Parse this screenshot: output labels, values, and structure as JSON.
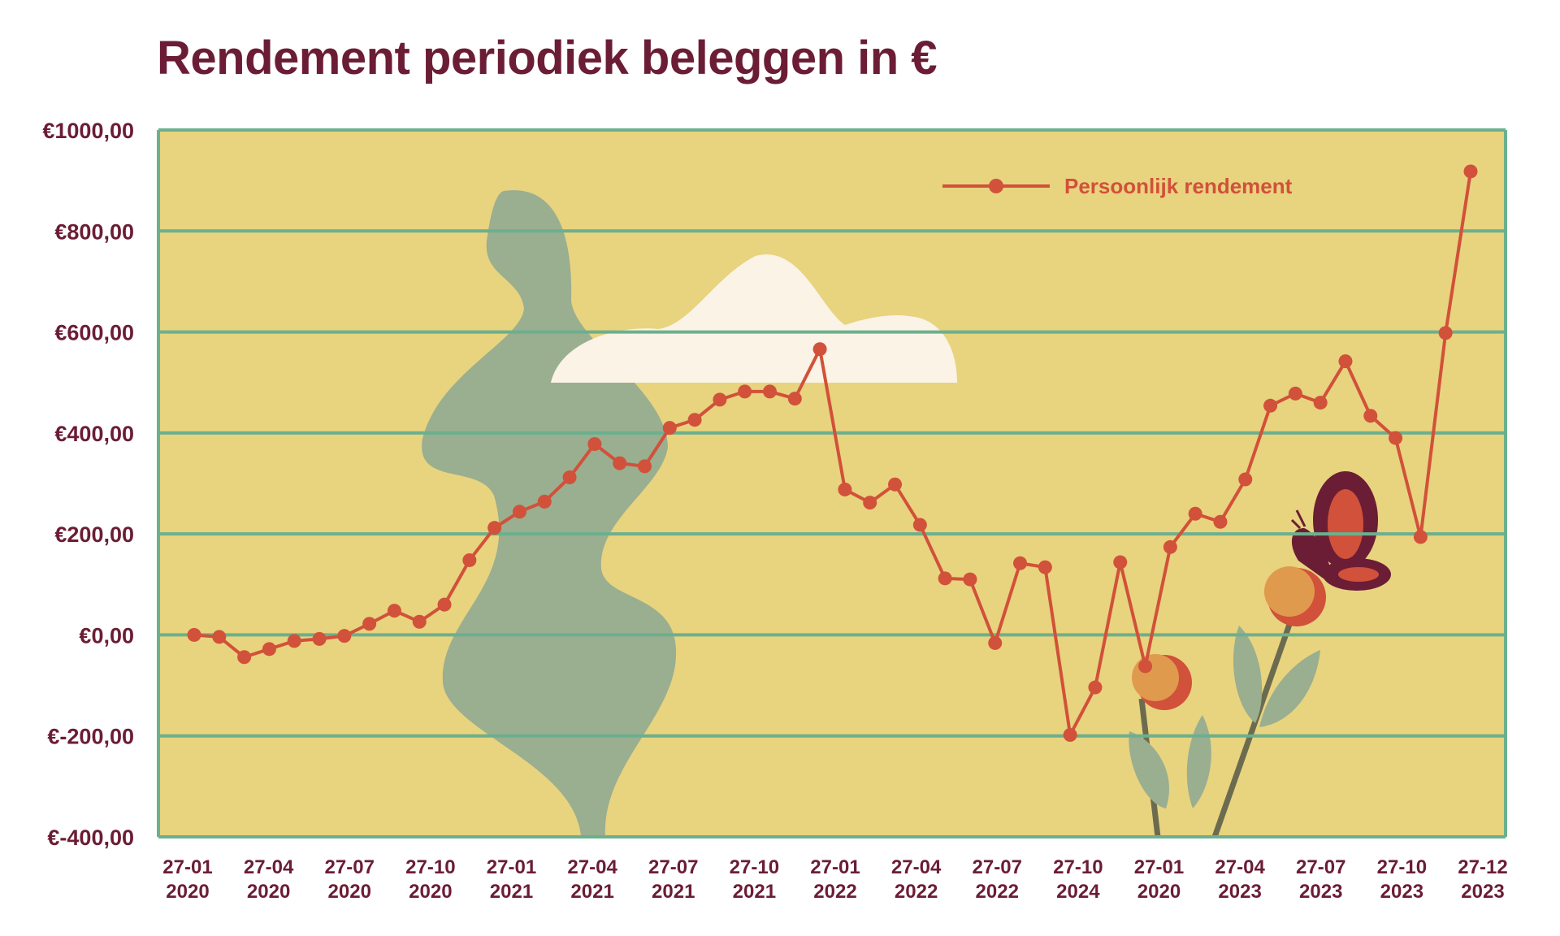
{
  "chart_data": {
    "type": "line",
    "title": "Rendement periodiek beleggen in €",
    "ylim": [
      -400,
      1000
    ],
    "yticks": [
      "€1000,00",
      "€800,00",
      "€600,00",
      "€400,00",
      "€200,00",
      "€0,00",
      "€-200,00",
      "€-400,00"
    ],
    "ytick_values": [
      1000,
      800,
      600,
      400,
      200,
      0,
      -200,
      -400
    ],
    "xtick_labels": [
      [
        "27-01",
        "2020"
      ],
      [
        "27-04",
        "2020"
      ],
      [
        "27-07",
        "2020"
      ],
      [
        "27-10",
        "2020"
      ],
      [
        "27-01",
        "2021"
      ],
      [
        "27-04",
        "2021"
      ],
      [
        "27-07",
        "2021"
      ],
      [
        "27-10",
        "2021"
      ],
      [
        "27-01",
        "2022"
      ],
      [
        "27-04",
        "2022"
      ],
      [
        "27-07",
        "2022"
      ],
      [
        "27-10",
        "2024"
      ],
      [
        "27-01",
        "2020"
      ],
      [
        "27-04",
        "2023"
      ],
      [
        "27-07",
        "2023"
      ],
      [
        "27-10",
        "2023"
      ],
      [
        "27-12",
        "2023"
      ]
    ],
    "grid": true,
    "legend_position": "top-right",
    "series": [
      {
        "name": "Persoonlijk rendement",
        "color": "#d1513a",
        "values": [
          0,
          -4,
          -44,
          -28,
          -12,
          -8,
          -2,
          22,
          48,
          26,
          60,
          148,
          212,
          244,
          264,
          312,
          378,
          340,
          334,
          410,
          426,
          466,
          482,
          482,
          468,
          566,
          288,
          262,
          298,
          218,
          112,
          110,
          -16,
          142,
          134,
          -198,
          -104,
          144,
          -62,
          174,
          240,
          224,
          308,
          454,
          478,
          460,
          542,
          434,
          390,
          194,
          598,
          918
        ]
      }
    ]
  },
  "colors": {
    "title": "#6b1d35",
    "plot_background": "#e8d37f",
    "grid": "#6bb08e",
    "series": "#d1513a",
    "tree": "#9aae90",
    "cloud": "#faf3e6"
  }
}
